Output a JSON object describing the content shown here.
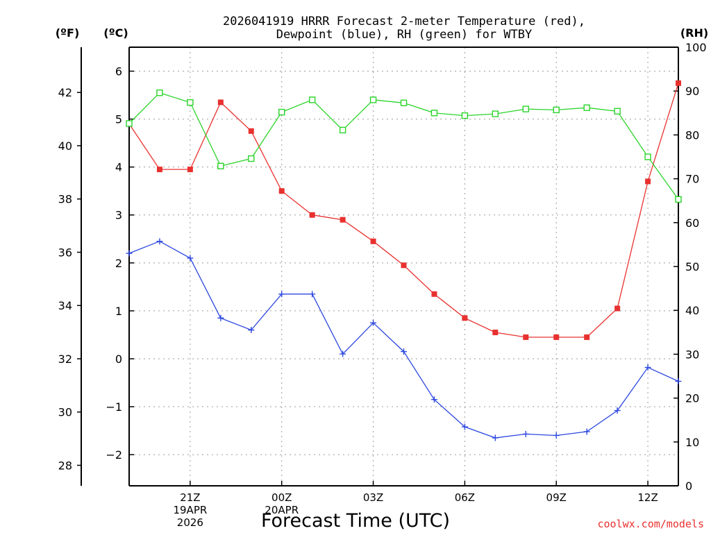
{
  "chart_data": {
    "type": "line",
    "title_lines": [
      "2026041919 HRRR Forecast 2-meter Temperature (red),",
      "Dewpoint (blue), RH (green) for WTBY"
    ],
    "xlabel": "Forecast Time (UTC)",
    "credit": "coolwx.com/models",
    "units": {
      "fahrenheit": "(ºF)",
      "celsius": "(ºC)",
      "rh": "(RH)"
    },
    "x_hours": [
      19,
      20,
      21,
      22,
      23,
      24,
      25,
      26,
      27,
      28,
      29,
      30,
      31,
      32,
      33,
      34,
      35,
      36,
      37
    ],
    "xlim": [
      19,
      37
    ],
    "x_ticks": [
      {
        "hour": 21,
        "lines": [
          "21Z",
          "19APR",
          "2026"
        ]
      },
      {
        "hour": 24,
        "lines": [
          "00Z",
          "20APR"
        ]
      },
      {
        "hour": 27,
        "lines": [
          "03Z"
        ]
      },
      {
        "hour": 30,
        "lines": [
          "06Z"
        ]
      },
      {
        "hour": 33,
        "lines": [
          "09Z"
        ]
      },
      {
        "hour": 36,
        "lines": [
          "12Z"
        ]
      }
    ],
    "celsius_axis": {
      "ylim": [
        -2.65,
        6.5
      ],
      "ticks": [
        6,
        5,
        4,
        3,
        2,
        1,
        0,
        -1,
        -2
      ]
    },
    "fahrenheit_axis": {
      "ticks": [
        42,
        40,
        38,
        36,
        34,
        32,
        30,
        28
      ]
    },
    "rh_axis": {
      "ylim": [
        0,
        100
      ],
      "ticks": [
        100,
        90,
        80,
        70,
        60,
        50,
        40,
        30,
        20,
        10,
        0
      ]
    },
    "grid": true,
    "series": [
      {
        "name": "2-meter Temperature",
        "axis": "celsius",
        "color": "#e8312f",
        "marker": "filled-square",
        "values": [
          4.9,
          3.95,
          3.95,
          5.35,
          4.75,
          3.5,
          3.0,
          2.9,
          2.45,
          1.95,
          1.35,
          0.85,
          0.55,
          0.45,
          0.45,
          0.45,
          1.05,
          3.7,
          5.75
        ]
      },
      {
        "name": "Dewpoint",
        "axis": "celsius",
        "color": "#2d48e0",
        "marker": "plus",
        "values": [
          2.2,
          2.45,
          2.1,
          0.85,
          0.6,
          1.35,
          1.35,
          0.1,
          0.75,
          0.15,
          -0.85,
          -1.42,
          -1.65,
          -1.57,
          -1.6,
          -1.52,
          -1.08,
          -0.18,
          -0.47
        ]
      },
      {
        "name": "RH",
        "axis": "rh",
        "color": "#2ad42a",
        "marker": "open-square",
        "values": [
          82.6,
          89.6,
          87.4,
          72.9,
          74.6,
          85.2,
          88.0,
          81.1,
          88.0,
          87.3,
          85.0,
          84.4,
          84.8,
          85.9,
          85.7,
          86.2,
          85.4,
          75.0,
          65.3
        ]
      }
    ]
  }
}
